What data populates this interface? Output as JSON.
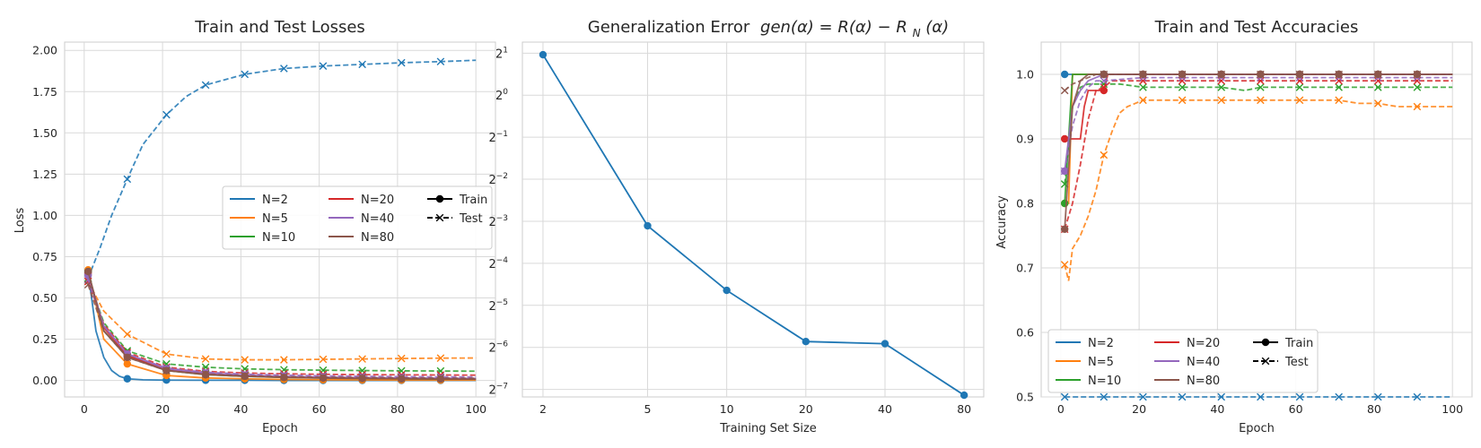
{
  "chart_data": [
    {
      "type": "line",
      "title": "Train and Test Losses",
      "xlabel": "Epoch",
      "ylabel": "Loss",
      "xlim": [
        -5,
        105
      ],
      "ylim": [
        -0.1,
        2.05
      ],
      "xticks": [
        0,
        20,
        40,
        60,
        80,
        100
      ],
      "yticks": [
        0.0,
        0.25,
        0.5,
        0.75,
        1.0,
        1.25,
        1.5,
        1.75,
        2.0
      ],
      "ytick_labels": [
        "0.00",
        "0.25",
        "0.50",
        "0.75",
        "1.00",
        "1.25",
        "1.50",
        "1.75",
        "2.00"
      ],
      "grid": true,
      "legend": {
        "placement": "center-right",
        "entries": [
          "N=2",
          "N=5",
          "N=10",
          "N=20",
          "N=40",
          "N=80",
          "Train",
          "Test"
        ]
      },
      "marker_x": [
        1,
        11,
        21,
        31,
        41,
        51,
        61,
        71,
        81,
        91
      ],
      "series": [
        {
          "name": "N=2",
          "color": "#1f77b4",
          "train_x": [
            1,
            3,
            5,
            7,
            9,
            11,
            15,
            21,
            31,
            41,
            51,
            61,
            71,
            81,
            91,
            100
          ],
          "train": [
            0.66,
            0.3,
            0.14,
            0.06,
            0.025,
            0.01,
            0.004,
            0.002,
            0.001,
            0.001,
            0.0,
            0.0,
            0.0,
            0.0,
            0.0,
            0.0
          ],
          "test_x": [
            1,
            4,
            7,
            11,
            15,
            21,
            26,
            31,
            41,
            51,
            61,
            71,
            81,
            91,
            100
          ],
          "test": [
            0.62,
            0.8,
            1.0,
            1.22,
            1.43,
            1.61,
            1.72,
            1.79,
            1.855,
            1.89,
            1.905,
            1.915,
            1.925,
            1.932,
            1.94
          ]
        },
        {
          "name": "N=5",
          "color": "#ff7f0e",
          "train_x": [
            1,
            5,
            11,
            21,
            31,
            41,
            51,
            61,
            71,
            81,
            91,
            100
          ],
          "train": [
            0.67,
            0.25,
            0.1,
            0.03,
            0.015,
            0.01,
            0.006,
            0.004,
            0.003,
            0.002,
            0.002,
            0.002
          ],
          "test_x": [
            1,
            5,
            11,
            21,
            31,
            41,
            51,
            61,
            71,
            81,
            91,
            100
          ],
          "test": [
            0.6,
            0.42,
            0.28,
            0.16,
            0.13,
            0.125,
            0.125,
            0.128,
            0.13,
            0.133,
            0.135,
            0.136
          ]
        },
        {
          "name": "N=10",
          "color": "#2ca02c",
          "train_x": [
            1,
            5,
            11,
            21,
            31,
            41,
            51,
            61,
            71,
            81,
            91,
            100
          ],
          "train": [
            0.66,
            0.3,
            0.15,
            0.06,
            0.035,
            0.025,
            0.018,
            0.015,
            0.012,
            0.01,
            0.009,
            0.008
          ],
          "test_x": [
            1,
            5,
            11,
            21,
            31,
            41,
            51,
            61,
            71,
            81,
            91,
            100
          ],
          "test": [
            0.62,
            0.35,
            0.18,
            0.1,
            0.08,
            0.07,
            0.065,
            0.062,
            0.06,
            0.058,
            0.057,
            0.056
          ]
        },
        {
          "name": "N=20",
          "color": "#d62728",
          "train_x": [
            1,
            5,
            11,
            21,
            31,
            41,
            51,
            61,
            71,
            81,
            91,
            100
          ],
          "train": [
            0.65,
            0.32,
            0.15,
            0.065,
            0.04,
            0.028,
            0.02,
            0.016,
            0.013,
            0.011,
            0.01,
            0.009
          ],
          "test_x": [
            1,
            5,
            11,
            21,
            31,
            41,
            51,
            61,
            71,
            81,
            91,
            100
          ],
          "test": [
            0.6,
            0.34,
            0.17,
            0.08,
            0.055,
            0.045,
            0.04,
            0.037,
            0.035,
            0.034,
            0.033,
            0.032
          ]
        },
        {
          "name": "N=40",
          "color": "#9467bd",
          "train_x": [
            1,
            5,
            11,
            21,
            31,
            41,
            51,
            61,
            71,
            81,
            91,
            100
          ],
          "train": [
            0.64,
            0.33,
            0.16,
            0.07,
            0.045,
            0.032,
            0.025,
            0.02,
            0.017,
            0.015,
            0.013,
            0.012
          ],
          "test_x": [
            1,
            5,
            11,
            21,
            31,
            41,
            51,
            61,
            71,
            81,
            91,
            100
          ],
          "test": [
            0.61,
            0.33,
            0.16,
            0.075,
            0.05,
            0.038,
            0.032,
            0.028,
            0.025,
            0.023,
            0.022,
            0.021
          ]
        },
        {
          "name": "N=80",
          "color": "#8c564b",
          "train_x": [
            1,
            5,
            11,
            21,
            31,
            41,
            51,
            61,
            71,
            81,
            91,
            100
          ],
          "train": [
            0.66,
            0.3,
            0.14,
            0.06,
            0.035,
            0.025,
            0.018,
            0.014,
            0.012,
            0.01,
            0.009,
            0.008
          ],
          "test_x": [
            1,
            5,
            11,
            21,
            31,
            41,
            51,
            61,
            71,
            81,
            91,
            100
          ],
          "test": [
            0.58,
            0.3,
            0.14,
            0.06,
            0.038,
            0.028,
            0.022,
            0.019,
            0.017,
            0.015,
            0.014,
            0.013
          ]
        }
      ]
    },
    {
      "type": "line",
      "title": "Generalization Error",
      "title_math": {
        "lhs": "gen(α) = R(α) − ",
        "rhat": "R",
        "sub": "N",
        "tail": "(α)"
      },
      "xlabel": "Training Set Size",
      "ylabel": "",
      "xscale": "log",
      "yscale": "log2",
      "xticks": [
        2,
        5,
        10,
        20,
        40,
        80
      ],
      "yticks_exp": [
        1,
        0,
        -1,
        -2,
        -3,
        -4,
        -5,
        -6,
        -7
      ],
      "ytick_base": "2",
      "ylim": [
        0.0069,
        2.4
      ],
      "xlim": [
        1.67,
        95
      ],
      "grid": true,
      "series": [
        {
          "name": "",
          "color": "#1f77b4",
          "x": [
            2,
            5,
            10,
            20,
            40,
            80
          ],
          "values": [
            1.95,
            0.116,
            0.04,
            0.0172,
            0.0166,
            0.0071
          ]
        }
      ]
    },
    {
      "type": "line",
      "title": "Train and Test Accuracies",
      "xlabel": "Epoch",
      "ylabel": "Accuracy",
      "xlim": [
        -5,
        105
      ],
      "ylim": [
        0.5,
        1.05
      ],
      "xticks": [
        0,
        20,
        40,
        60,
        80,
        100
      ],
      "yticks": [
        0.5,
        0.6,
        0.7,
        0.8,
        0.9,
        1.0
      ],
      "ytick_labels": [
        "0.5",
        "0.6",
        "0.7",
        "0.8",
        "0.9",
        "1.0"
      ],
      "grid": true,
      "legend": {
        "placement": "lower-left",
        "entries": [
          "N=2",
          "N=5",
          "N=10",
          "N=20",
          "N=40",
          "N=80",
          "Train",
          "Test"
        ]
      },
      "marker_x": [
        1,
        11,
        21,
        31,
        41,
        51,
        61,
        71,
        81,
        91
      ],
      "series": [
        {
          "name": "N=2",
          "color": "#1f77b4",
          "train_x": [
            1,
            100
          ],
          "train": [
            1.0,
            1.0
          ],
          "test_x": [
            1,
            100
          ],
          "test": [
            0.5,
            0.5
          ]
        },
        {
          "name": "N=5",
          "color": "#ff7f0e",
          "train_x": [
            1,
            2,
            3,
            100
          ],
          "train": [
            0.8,
            0.8,
            1.0,
            1.0
          ],
          "test_x": [
            1,
            2,
            3,
            5,
            7,
            9,
            11,
            13,
            15,
            17,
            19,
            21,
            31,
            41,
            51,
            61,
            71,
            76,
            81,
            86,
            91,
            100
          ],
          "test": [
            0.705,
            0.68,
            0.73,
            0.75,
            0.78,
            0.82,
            0.875,
            0.91,
            0.94,
            0.95,
            0.955,
            0.96,
            0.96,
            0.96,
            0.96,
            0.96,
            0.96,
            0.955,
            0.955,
            0.95,
            0.95,
            0.95
          ]
        },
        {
          "name": "N=10",
          "color": "#2ca02c",
          "train_x": [
            1,
            2,
            3,
            100
          ],
          "train": [
            0.8,
            0.9,
            1.0,
            1.0
          ],
          "test_x": [
            1,
            3,
            5,
            7,
            9,
            11,
            15,
            21,
            31,
            41,
            47,
            51,
            61,
            71,
            81,
            91,
            100
          ],
          "test": [
            0.83,
            0.95,
            0.98,
            0.985,
            0.985,
            0.985,
            0.985,
            0.98,
            0.98,
            0.98,
            0.975,
            0.98,
            0.98,
            0.98,
            0.98,
            0.98,
            0.98
          ]
        },
        {
          "name": "N=20",
          "color": "#d62728",
          "train_x": [
            1,
            2,
            3,
            5,
            6,
            7,
            9,
            11,
            12,
            100
          ],
          "train": [
            0.9,
            0.9,
            0.9,
            0.9,
            0.95,
            0.975,
            0.975,
            0.975,
            1.0,
            1.0
          ],
          "test_x": [
            1,
            3,
            5,
            7,
            9,
            11,
            13,
            21,
            31,
            41,
            51,
            61,
            71,
            81,
            91,
            100
          ],
          "test": [
            0.76,
            0.8,
            0.86,
            0.93,
            0.975,
            0.98,
            0.99,
            0.99,
            0.99,
            0.99,
            0.99,
            0.99,
            0.99,
            0.99,
            0.99,
            0.99
          ]
        },
        {
          "name": "N=40",
          "color": "#9467bd",
          "train_x": [
            1,
            3,
            5,
            7,
            9,
            11,
            21,
            100
          ],
          "train": [
            0.85,
            0.95,
            0.975,
            0.99,
            0.995,
            1.0,
            1.0,
            1.0
          ],
          "test_x": [
            1,
            3,
            5,
            7,
            9,
            11,
            21,
            31,
            41,
            51,
            61,
            71,
            81,
            91,
            100
          ],
          "test": [
            0.85,
            0.92,
            0.96,
            0.98,
            0.99,
            0.99,
            0.995,
            0.995,
            0.995,
            0.995,
            0.995,
            0.995,
            0.995,
            0.995,
            0.995
          ]
        },
        {
          "name": "N=80",
          "color": "#8c564b",
          "train_x": [
            1,
            3,
            5,
            7,
            9,
            100
          ],
          "train": [
            0.76,
            0.95,
            0.99,
            1.0,
            1.0,
            1.0
          ],
          "test_x": [
            1,
            3,
            5,
            7,
            9,
            11,
            21,
            100
          ],
          "test": [
            0.975,
            0.985,
            0.99,
            0.995,
            1.0,
            1.0,
            1.0,
            1.0
          ]
        }
      ]
    }
  ]
}
